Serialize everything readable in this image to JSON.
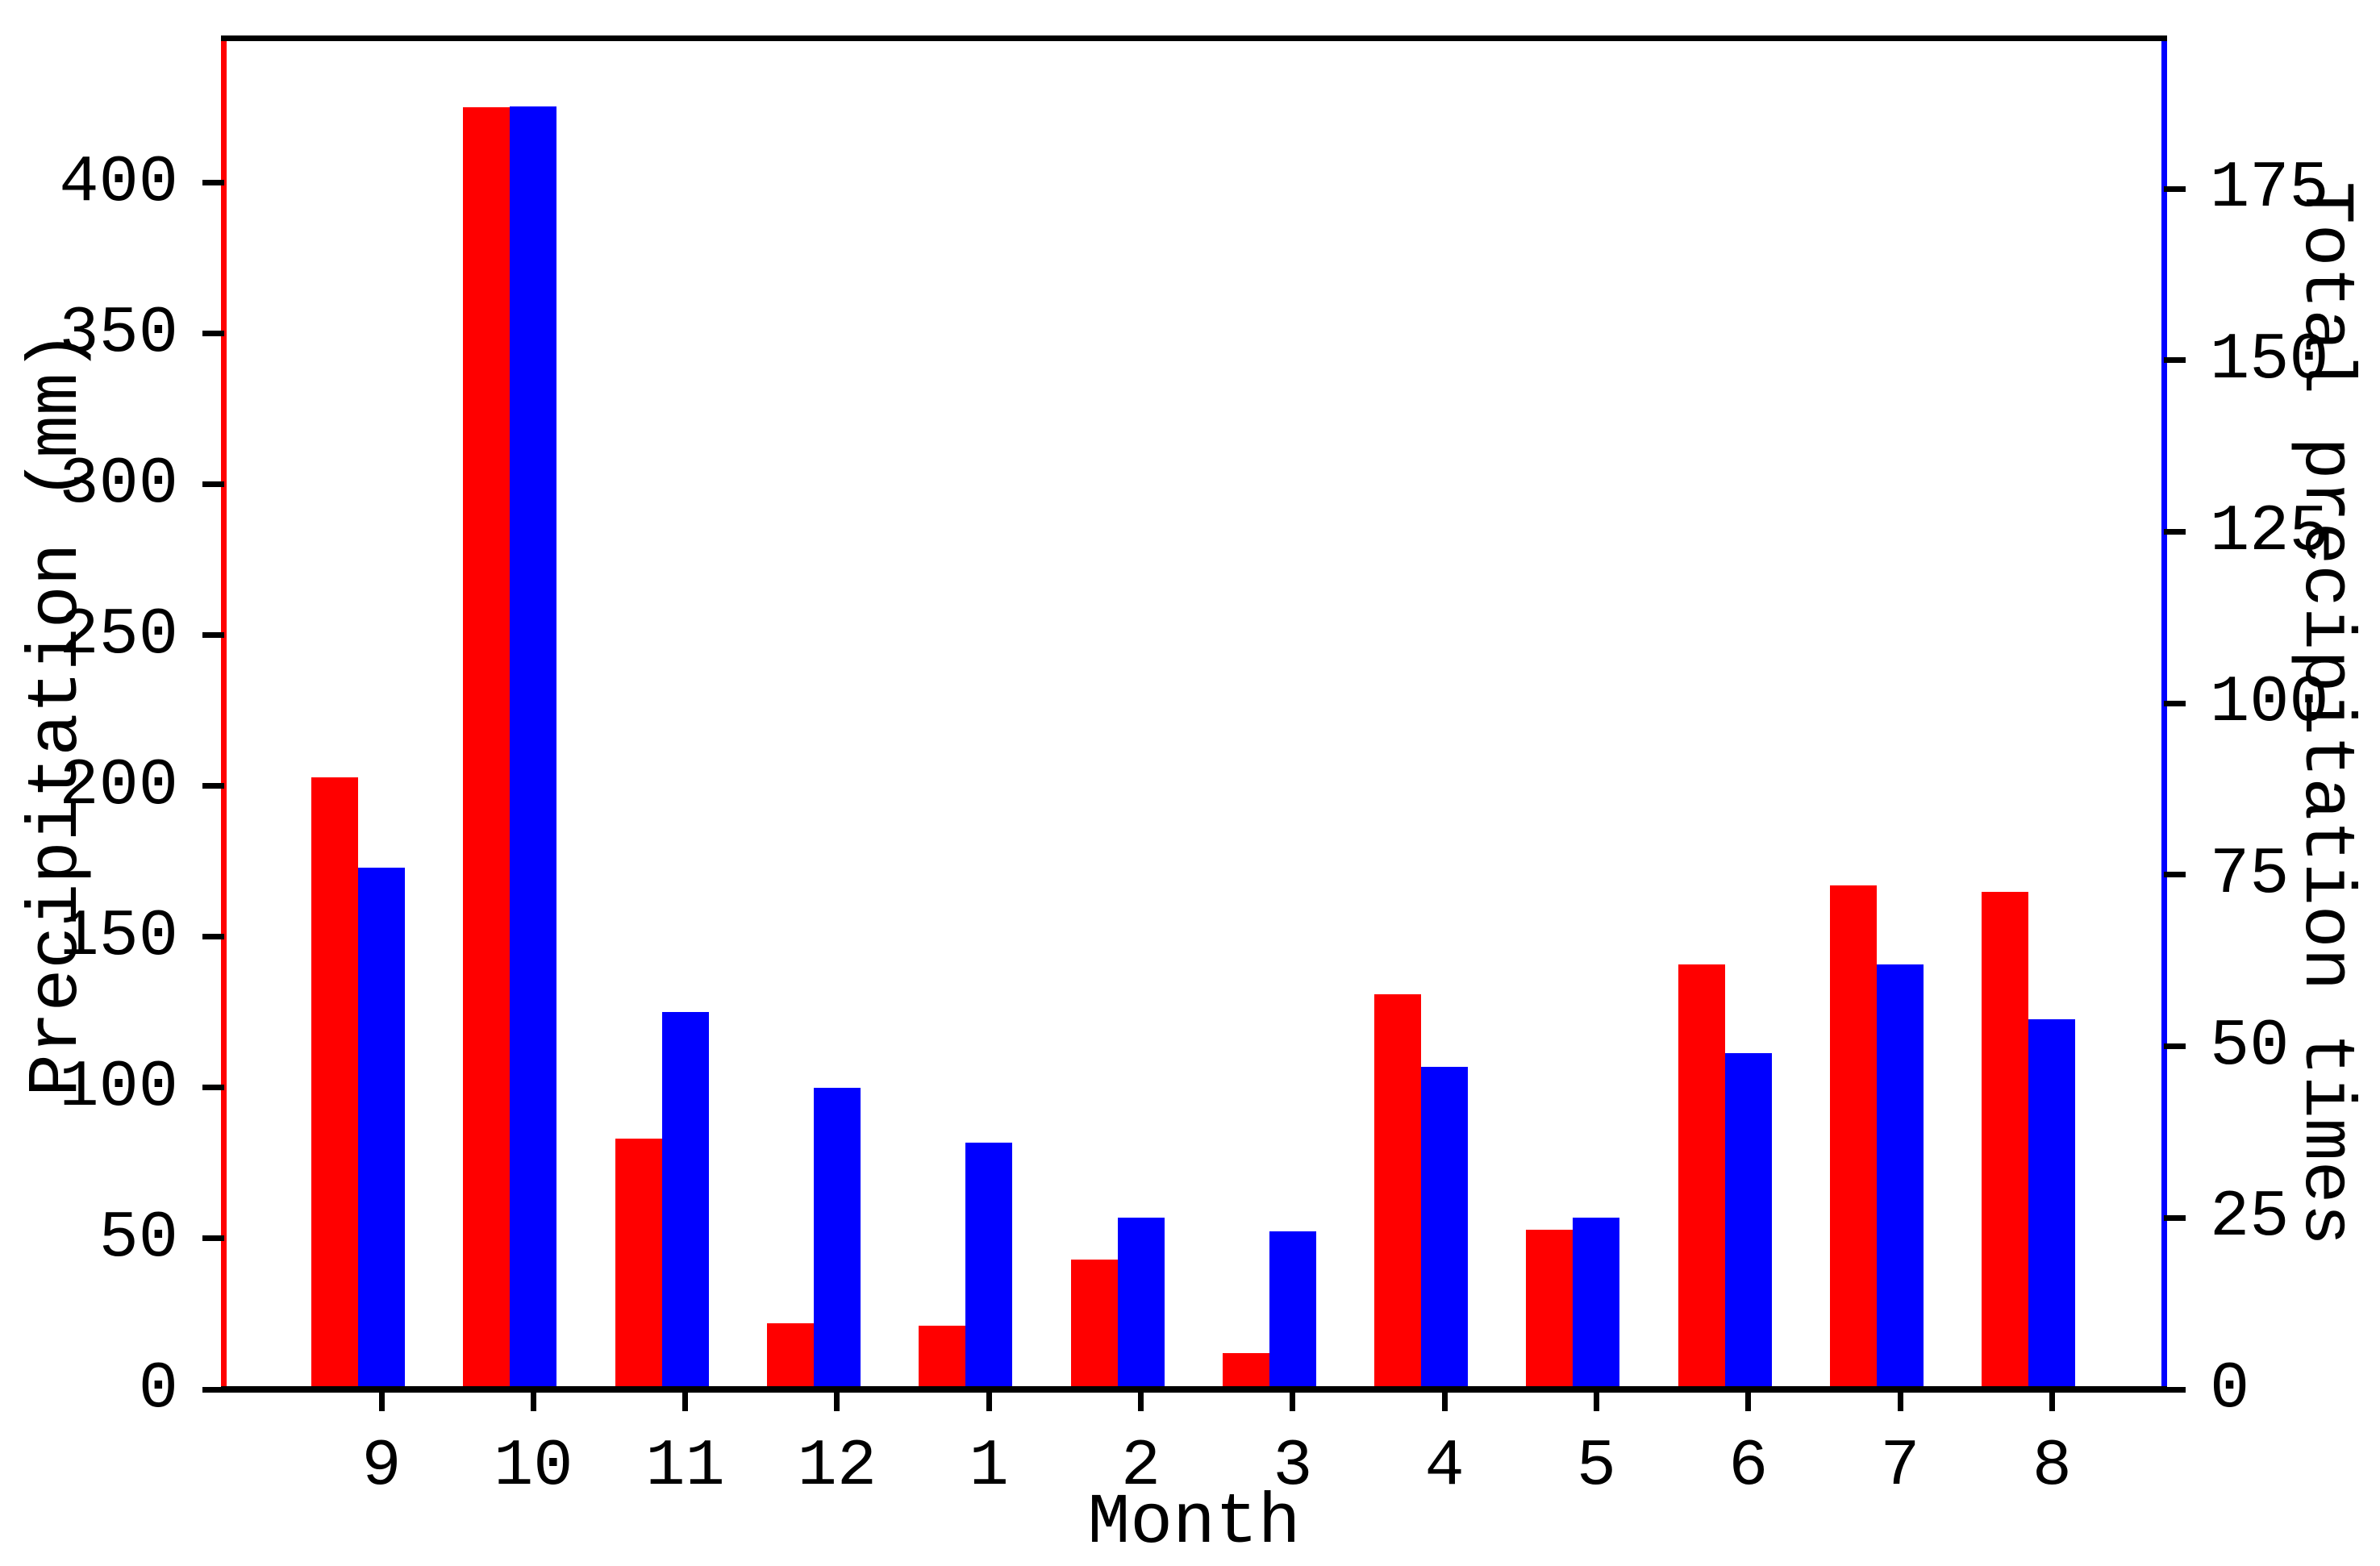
{
  "chart_data": {
    "type": "bar",
    "title": "",
    "xlabel": "Month",
    "ylabel_left": "Precipitation (mm)",
    "ylabel_right": "Total precipitation times",
    "categories": [
      "9",
      "10",
      "11",
      "12",
      "1",
      "2",
      "3",
      "4",
      "5",
      "6",
      "7",
      "8"
    ],
    "series": [
      {
        "name": "Precipitation (mm)",
        "axis": "left",
        "color": "#ff0000",
        "values": [
          203,
          425,
          83,
          22,
          21,
          43,
          12,
          131,
          53,
          141,
          167,
          165
        ]
      },
      {
        "name": "Total precipitation times",
        "axis": "right",
        "color": "#0000ff",
        "values": [
          76,
          187,
          55,
          44,
          36,
          25,
          23,
          47,
          25,
          49,
          62,
          54
        ]
      }
    ],
    "axes": {
      "left": {
        "ticks": [
          "0",
          "50",
          "100",
          "150",
          "200",
          "250",
          "300",
          "350",
          "400"
        ],
        "range": [
          0,
          448
        ],
        "color": "#ff0000"
      },
      "right": {
        "ticks": [
          "0",
          "25",
          "50",
          "75",
          "100",
          "125",
          "150",
          "175"
        ],
        "range": [
          0,
          197
        ],
        "color": "#0000ff"
      },
      "x": {
        "tick_labels": [
          "9",
          "10",
          "11",
          "12",
          "1",
          "2",
          "3",
          "4",
          "5",
          "6",
          "7",
          "8"
        ]
      }
    },
    "grid": false,
    "legend_position": "none",
    "background": "#ffffff",
    "spine_colors": {
      "top": "#000000",
      "bottom": "#000000",
      "left": "#ff0000",
      "right": "#0000ff"
    }
  }
}
